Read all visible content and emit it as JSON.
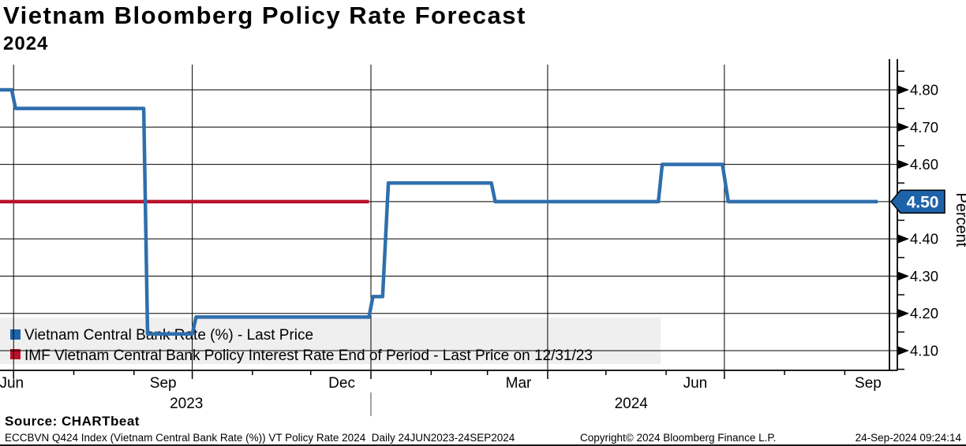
{
  "header": {
    "title": "Vietnam Bloomberg Policy Rate Forecast",
    "subtitle": "2024"
  },
  "chart_data": {
    "type": "line",
    "title": "Vietnam Bloomberg Policy Rate Forecast 2024",
    "ylabel": "Percent",
    "grid": true,
    "legend_position": "bottom-left-overlay",
    "y_axis": {
      "label": "Percent",
      "range": [
        4.04,
        4.87
      ],
      "ticks_major": [
        4.1,
        4.2,
        4.3,
        4.4,
        4.5,
        4.6,
        4.7,
        4.8
      ],
      "ticks_minor": [
        4.05,
        4.15,
        4.25,
        4.35,
        4.45,
        4.55,
        4.65,
        4.75,
        4.85
      ]
    },
    "x_axis": {
      "start_date": "24JUN2023",
      "end_date": "24SEP2024",
      "total_days": 458,
      "month_tick_days": [
        7,
        38,
        69,
        99,
        130,
        160,
        191,
        222,
        251,
        282,
        312,
        343,
        373,
        404,
        435
      ],
      "quarter_gridline_days": [
        7,
        99,
        191,
        282,
        373
      ],
      "month_labels": [
        {
          "label": "Jun",
          "day": 6
        },
        {
          "label": "Sep",
          "day": 84
        },
        {
          "label": "Dec",
          "day": 176
        },
        {
          "label": "Mar",
          "day": 267
        },
        {
          "label": "Jun",
          "day": 358
        },
        {
          "label": "Sep",
          "day": 447
        }
      ],
      "year_labels": [
        {
          "label": "2023",
          "day": 96
        },
        {
          "label": "2024",
          "day": 325
        }
      ],
      "year_divider_day": 191
    },
    "series": [
      {
        "name": "Vietnam Central Bank Rate (%) - Last Price",
        "color": "#2e6fad",
        "swatch_color": "#1f63a8",
        "width": 4.5,
        "points_day_value": [
          [
            0,
            4.8
          ],
          [
            6,
            4.8
          ],
          [
            8,
            4.75
          ],
          [
            74,
            4.75
          ],
          [
            76,
            4.145
          ],
          [
            99,
            4.145
          ],
          [
            101,
            4.19
          ],
          [
            190,
            4.19
          ],
          [
            192,
            4.245
          ],
          [
            197,
            4.245
          ],
          [
            200,
            4.55
          ],
          [
            253,
            4.55
          ],
          [
            255,
            4.5
          ],
          [
            339,
            4.5
          ],
          [
            341,
            4.6
          ],
          [
            372,
            4.6
          ],
          [
            375,
            4.5
          ],
          [
            452,
            4.5
          ]
        ]
      },
      {
        "name": "IMF Vietnam Central Bank Policy Interest Rate End of Period - Last Price on 12/31/23",
        "color": "#bb1229",
        "swatch_color": "#bd1129",
        "width": 4.5,
        "points_day_value": [
          [
            0,
            4.5
          ],
          [
            190,
            4.5
          ]
        ]
      }
    ],
    "last_price": {
      "label": "4.50",
      "value": 4.5,
      "badge_color": "#1e63a9",
      "badge_text_color": "#ffffff"
    },
    "legend": {
      "bg": "#efefef"
    },
    "grid_color": "#000000"
  },
  "footer": {
    "source": "Source: CHARTbeat",
    "index_info": "ECCBVN Q424 Index (Vietnam Central Bank Rate (%)) VT Policy Rate 2024  Daily 24JUN2023-24SEP2024",
    "copyright": "Copyright© 2024 Bloomberg Finance L.P.",
    "timestamp": "24-Sep-2024 09:24:14"
  }
}
